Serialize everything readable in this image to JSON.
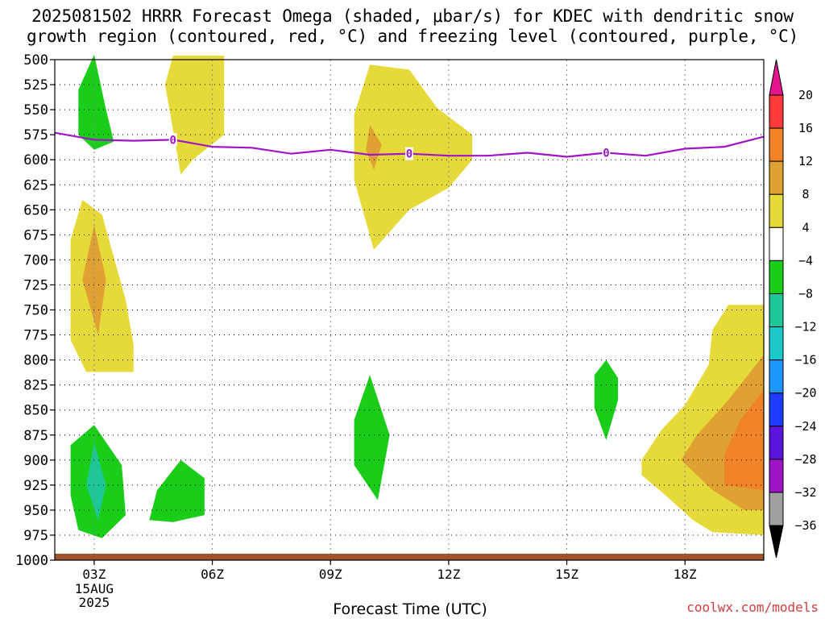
{
  "title": {
    "line1": "2025081502 HRRR Forecast Omega (shaded, μbar/s) for KDEC with dendritic snow",
    "line2": "growth region (contoured, red, °C) and freezing level (contoured, purple, °C)"
  },
  "watermark": "coolwx.com/models",
  "chart_data": {
    "type": "time-height contour",
    "xlabel": "Forecast Time (UTC)",
    "x_ticks": [
      "03Z",
      "06Z",
      "09Z",
      "12Z",
      "15Z",
      "18Z"
    ],
    "x_tick_hours": [
      3,
      6,
      9,
      12,
      15,
      18
    ],
    "x_range_hours": [
      2,
      20
    ],
    "date_label": [
      "15AUG",
      "2025"
    ],
    "y_ticks": [
      500,
      525,
      550,
      575,
      600,
      625,
      650,
      675,
      700,
      725,
      750,
      775,
      800,
      825,
      850,
      875,
      900,
      925,
      950,
      975,
      1000
    ],
    "y_range_mb": [
      500,
      1000
    ],
    "grid": true,
    "colorbar": {
      "labels": [
        "20",
        "16",
        "12",
        "8",
        "4",
        "−4",
        "−8",
        "−12",
        "−16",
        "−20",
        "−24",
        "−28",
        "−32",
        "−36"
      ],
      "bins": [
        {
          "from": 16,
          "to": 20,
          "color": "#ff3a3a"
        },
        {
          "from": 12,
          "to": 16,
          "color": "#f08228"
        },
        {
          "from": 8,
          "to": 12,
          "color": "#dfa232"
        },
        {
          "from": 4,
          "to": 8,
          "color": "#e5da3a"
        },
        {
          "from": -4,
          "to": 4,
          "color": "#ffffff"
        },
        {
          "from": -8,
          "to": -4,
          "color": "#19cd19"
        },
        {
          "from": -12,
          "to": -8,
          "color": "#1ec896"
        },
        {
          "from": -16,
          "to": -12,
          "color": "#1ec8c8"
        },
        {
          "from": -20,
          "to": -16,
          "color": "#1e96ff"
        },
        {
          "from": -24,
          "to": -20,
          "color": "#1e3cff"
        },
        {
          "from": -28,
          "to": -24,
          "color": "#5a14dc"
        },
        {
          "from": -32,
          "to": -28,
          "color": "#a014c8"
        },
        {
          "from": -36,
          "to": -32,
          "color": "#a0a0a0"
        }
      ],
      "above_color": "#e6148c",
      "below_color": "#000000"
    },
    "freezing_level": {
      "color": "#a014c8",
      "label": "0",
      "hours": [
        2,
        3,
        4,
        5,
        6,
        7,
        8,
        9,
        10,
        11,
        12,
        13,
        14,
        15,
        16,
        17,
        18,
        19,
        20
      ],
      "mb": [
        573,
        580,
        581,
        580,
        587,
        588,
        594,
        590,
        595,
        594,
        596,
        596,
        593,
        597,
        593,
        596,
        589,
        587,
        577
      ],
      "label_hours": [
        5,
        11,
        16
      ]
    },
    "omega_regions": [
      {
        "name": "green-03z-upper",
        "bin": -8,
        "points": [
          [
            3.0,
            495
          ],
          [
            3.3,
            550
          ],
          [
            3.5,
            582
          ],
          [
            3.0,
            590
          ],
          [
            2.6,
            575
          ],
          [
            2.6,
            530
          ]
        ]
      },
      {
        "name": "yellow-06z-upper",
        "bin": 4,
        "points": [
          [
            5.0,
            496
          ],
          [
            6.3,
            496
          ],
          [
            6.3,
            575
          ],
          [
            5.5,
            600
          ],
          [
            5.2,
            615
          ],
          [
            4.8,
            525
          ]
        ]
      },
      {
        "name": "yellow-10z-tower",
        "bin": 4,
        "points": [
          [
            10.0,
            505
          ],
          [
            11.0,
            510
          ],
          [
            11.7,
            548
          ],
          [
            12.6,
            575
          ],
          [
            12.6,
            600
          ],
          [
            12.0,
            628
          ],
          [
            11.0,
            650
          ],
          [
            10.1,
            690
          ],
          [
            9.6,
            620
          ],
          [
            9.6,
            555
          ]
        ]
      },
      {
        "name": "orange-10z",
        "bin": 8,
        "points": [
          [
            10.0,
            565
          ],
          [
            10.3,
            585
          ],
          [
            10.1,
            610
          ],
          [
            9.9,
            590
          ]
        ]
      },
      {
        "name": "yellow-03z-mid",
        "bin": 4,
        "points": [
          [
            2.7,
            640
          ],
          [
            3.2,
            655
          ],
          [
            3.8,
            740
          ],
          [
            4.0,
            785
          ],
          [
            4.0,
            812
          ],
          [
            2.8,
            812
          ],
          [
            2.4,
            780
          ],
          [
            2.4,
            680
          ]
        ]
      },
      {
        "name": "orange-03z-mid",
        "bin": 8,
        "points": [
          [
            3.0,
            665
          ],
          [
            3.3,
            720
          ],
          [
            3.1,
            775
          ],
          [
            2.7,
            720
          ]
        ]
      },
      {
        "name": "green-03z-low",
        "bin": -8,
        "points": [
          [
            3.0,
            865
          ],
          [
            3.7,
            905
          ],
          [
            3.8,
            955
          ],
          [
            3.2,
            978
          ],
          [
            2.6,
            970
          ],
          [
            2.4,
            935
          ],
          [
            2.4,
            885
          ]
        ]
      },
      {
        "name": "teal-03z-low",
        "bin": -12,
        "points": [
          [
            3.0,
            883
          ],
          [
            3.3,
            925
          ],
          [
            3.1,
            960
          ],
          [
            2.8,
            925
          ]
        ]
      },
      {
        "name": "green-05z-low",
        "bin": -8,
        "points": [
          [
            5.2,
            900
          ],
          [
            5.8,
            918
          ],
          [
            5.8,
            955
          ],
          [
            5.0,
            962
          ],
          [
            4.4,
            960
          ],
          [
            4.6,
            930
          ]
        ]
      },
      {
        "name": "green-10z-low",
        "bin": -8,
        "points": [
          [
            10.0,
            815
          ],
          [
            10.5,
            875
          ],
          [
            10.2,
            940
          ],
          [
            9.6,
            905
          ],
          [
            9.6,
            860
          ]
        ]
      },
      {
        "name": "green-16z-low",
        "bin": -8,
        "points": [
          [
            16.0,
            800
          ],
          [
            16.3,
            818
          ],
          [
            16.3,
            840
          ],
          [
            16.0,
            880
          ],
          [
            15.7,
            848
          ],
          [
            15.7,
            815
          ]
        ]
      },
      {
        "name": "yellow-19z",
        "bin": 4,
        "points": [
          [
            19.1,
            745
          ],
          [
            20.0,
            745
          ],
          [
            20.0,
            975
          ],
          [
            18.7,
            972
          ],
          [
            18.2,
            960
          ],
          [
            17.5,
            935
          ],
          [
            16.9,
            915
          ],
          [
            16.9,
            900
          ],
          [
            17.4,
            870
          ],
          [
            18.0,
            845
          ],
          [
            18.6,
            805
          ],
          [
            18.7,
            770
          ]
        ]
      },
      {
        "name": "orange-19z",
        "bin": 8,
        "points": [
          [
            20.0,
            795
          ],
          [
            20.0,
            950
          ],
          [
            19.5,
            950
          ],
          [
            18.7,
            930
          ],
          [
            17.9,
            900
          ],
          [
            18.3,
            875
          ],
          [
            19.1,
            840
          ]
        ]
      },
      {
        "name": "darkorange-19z",
        "bin": 12,
        "points": [
          [
            20.0,
            830
          ],
          [
            20.0,
            930
          ],
          [
            19.0,
            925
          ],
          [
            19.0,
            895
          ],
          [
            19.4,
            860
          ]
        ]
      }
    ],
    "surface_strip_color": "#a0522d"
  }
}
